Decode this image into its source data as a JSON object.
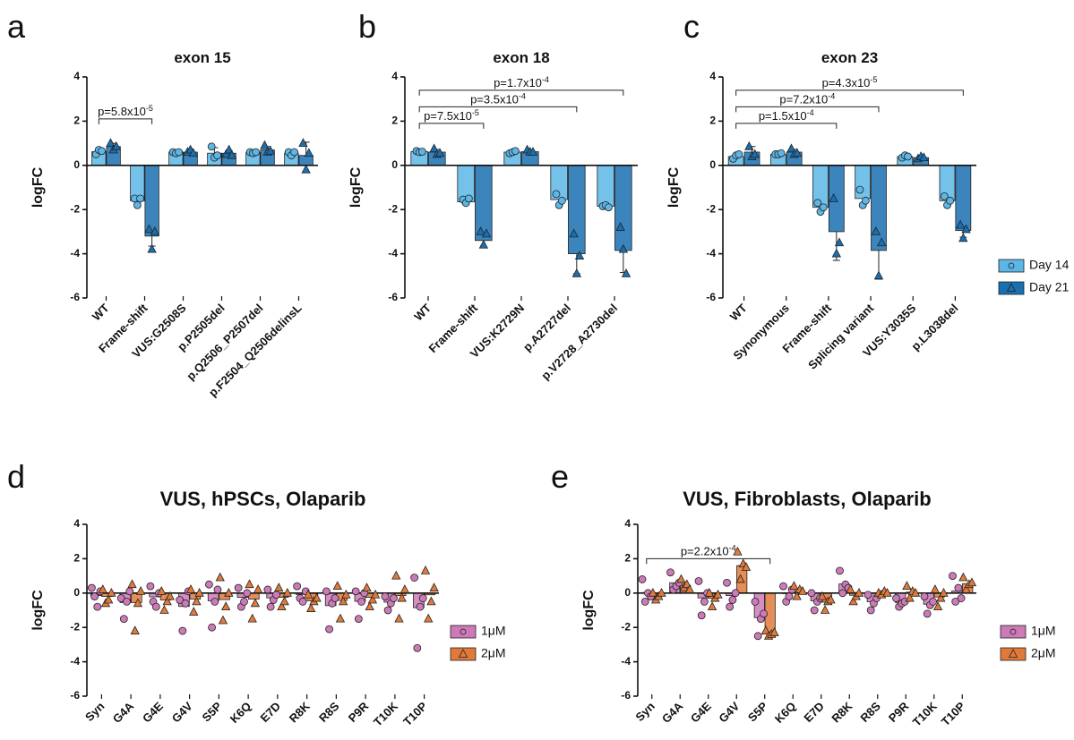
{
  "chart_data": [
    {
      "type": "bar",
      "panel": "a",
      "title": "exon 15",
      "y_label": "logFC",
      "categories": [
        "WT",
        "Frame-shift",
        "VUS:G2508S",
        "p.P2505del",
        "p.Q2506_P2507del",
        "p.F2504_Q2506delinsL"
      ],
      "ylim": [
        -6,
        4
      ],
      "yticks": [
        -6,
        -4,
        -2,
        0,
        2,
        4
      ],
      "series": [
        {
          "name": "Day 14",
          "color": "#5cb6e6",
          "marker": "circle",
          "values": [
            0.62,
            -1.6,
            0.6,
            0.55,
            0.58,
            0.55
          ],
          "errors": [
            0.1,
            0.15,
            0.03,
            0.25,
            0.03,
            0.08
          ],
          "points": [
            [
              0.5,
              0.7,
              0.65
            ],
            [
              -1.5,
              -1.8,
              -1.5
            ],
            [
              0.6,
              0.55,
              0.6
            ],
            [
              0.85,
              0.35,
              0.45
            ],
            [
              0.6,
              0.55,
              0.6
            ],
            [
              0.6,
              0.45,
              0.6
            ]
          ]
        },
        {
          "name": "Day 21",
          "color": "#1a6fb0",
          "marker": "triangle",
          "values": [
            0.85,
            -3.2,
            0.6,
            0.55,
            0.7,
            0.45
          ],
          "errors": [
            0.15,
            0.45,
            0.08,
            0.12,
            0.15,
            0.6
          ],
          "points": [
            [
              1.0,
              0.7,
              0.85
            ],
            [
              -2.9,
              -3.8,
              -3.0
            ],
            [
              0.6,
              0.7,
              0.55
            ],
            [
              0.5,
              0.7,
              0.45
            ],
            [
              0.9,
              0.6,
              0.65
            ],
            [
              1.0,
              -0.2,
              0.55
            ]
          ]
        }
      ],
      "annotations": [
        {
          "text": "p=5.8x10",
          "exp": "-5",
          "span": [
            0,
            1
          ]
        }
      ]
    },
    {
      "type": "bar",
      "panel": "b",
      "title": "exon 18",
      "y_label": "logFC",
      "categories": [
        "WT",
        "Frame-shift",
        "VUS:K2729N",
        "p.A2727del",
        "p.V2728_A2730del"
      ],
      "ylim": [
        -6,
        4
      ],
      "yticks": [
        -6,
        -4,
        -2,
        0,
        2,
        4
      ],
      "series": [
        {
          "name": "Day 14",
          "color": "#5cb6e6",
          "marker": "circle",
          "values": [
            0.62,
            -1.65,
            0.6,
            -1.55,
            -1.85
          ],
          "errors": [
            0.03,
            0.12,
            0.05,
            0.25,
            0.05
          ],
          "points": [
            [
              0.65,
              0.6,
              0.62
            ],
            [
              -1.55,
              -1.7,
              -1.5
            ],
            [
              0.55,
              0.6,
              0.65
            ],
            [
              -1.3,
              -1.8,
              -1.6
            ],
            [
              -1.85,
              -1.8,
              -1.9
            ]
          ]
        },
        {
          "name": "Day 21",
          "color": "#1a6fb0",
          "marker": "triangle",
          "values": [
            0.6,
            -3.4,
            0.62,
            -4.0,
            -3.85
          ],
          "errors": [
            0.12,
            0.3,
            0.05,
            0.9,
            1.0
          ],
          "points": [
            [
              0.75,
              0.5,
              0.55
            ],
            [
              -3.0,
              -3.6,
              -3.1
            ],
            [
              0.7,
              0.6,
              0.6
            ],
            [
              -3.1,
              -4.9,
              -4.1
            ],
            [
              -2.8,
              -3.8,
              -4.9
            ]
          ]
        }
      ],
      "annotations": [
        {
          "text": "p=7.5x10",
          "exp": "-5",
          "span": [
            0,
            1
          ]
        },
        {
          "text": "p=3.5x10",
          "exp": "-4",
          "span": [
            0,
            3
          ]
        },
        {
          "text": "p=1.7x10",
          "exp": "-4",
          "span": [
            0,
            4
          ]
        }
      ]
    },
    {
      "type": "bar",
      "panel": "c",
      "title": "exon 23",
      "y_label": "logFC",
      "legend": "right",
      "categories": [
        "WT",
        "Synonymous",
        "Frame-shift",
        "Splicing variant",
        "VUS:Y3035S",
        "p.L3038del"
      ],
      "ylim": [
        -6,
        4
      ],
      "yticks": [
        -6,
        -4,
        -2,
        0,
        2,
        4
      ],
      "series": [
        {
          "name": "Day 14",
          "color": "#5cb6e6",
          "marker": "circle",
          "values": [
            0.4,
            0.5,
            -1.9,
            -1.5,
            0.4,
            -1.6
          ],
          "errors": [
            0.1,
            0.04,
            0.2,
            0.35,
            0.05,
            0.2
          ],
          "points": [
            [
              0.3,
              0.45,
              0.5
            ],
            [
              0.5,
              0.5,
              0.55
            ],
            [
              -1.7,
              -2.1,
              -1.9
            ],
            [
              -1.1,
              -1.8,
              -1.6
            ],
            [
              0.35,
              0.45,
              0.4
            ],
            [
              -1.4,
              -1.8,
              -1.6
            ]
          ]
        },
        {
          "name": "Day 21",
          "color": "#1a6fb0",
          "marker": "triangle",
          "values": [
            0.6,
            0.6,
            -3.0,
            -3.85,
            0.35,
            -2.95
          ],
          "errors": [
            0.25,
            0.12,
            1.3,
            1.3,
            0.05,
            0.3
          ],
          "points": [
            [
              0.85,
              0.4,
              0.5
            ],
            [
              0.75,
              0.5,
              0.55
            ],
            [
              -1.5,
              -4.0,
              -3.5
            ],
            [
              -3.0,
              -5.0,
              -3.5
            ],
            [
              0.3,
              0.4,
              0.35
            ],
            [
              -2.7,
              -3.3,
              -2.9
            ]
          ]
        }
      ],
      "annotations": [
        {
          "text": "p=1.5x10",
          "exp": "-4",
          "span": [
            0,
            2
          ]
        },
        {
          "text": "p=7.2x10",
          "exp": "-4",
          "span": [
            0,
            3
          ]
        },
        {
          "text": "p=4.3x10",
          "exp": "-5",
          "span": [
            0,
            5
          ]
        }
      ]
    },
    {
      "type": "bar",
      "panel": "d",
      "title": "VUS, hPSCs, Olaparib",
      "y_label": "logFC",
      "legend": "right",
      "categories": [
        "Syn",
        "G4A",
        "G4E",
        "G4V",
        "S5P",
        "K6Q",
        "E7D",
        "R8K",
        "R8S",
        "P9R",
        "T10K",
        "T10P"
      ],
      "ylim": [
        -6,
        4
      ],
      "yticks": [
        -6,
        -4,
        -2,
        0,
        2,
        4
      ],
      "series": [
        {
          "name": "1μM",
          "color": "#cc7ab8",
          "marker": "circle",
          "values": [
            -0.15,
            -0.55,
            -0.22,
            -0.78,
            -0.45,
            -0.25,
            -0.28,
            -0.08,
            -0.73,
            -0.48,
            -0.53,
            -0.85
          ],
          "points": [
            [
              0.3,
              -0.2,
              -0.8,
              0.1
            ],
            [
              -0.3,
              -1.5,
              -0.5,
              0.1
            ],
            [
              0.4,
              -0.5,
              -0.8,
              0
            ],
            [
              -0.4,
              -2.2,
              -0.6,
              0.1
            ],
            [
              0.5,
              -2.0,
              -0.5,
              0.2
            ],
            [
              0.3,
              -0.8,
              -0.5,
              0
            ],
            [
              0.2,
              -0.8,
              -0.4,
              -0.1
            ],
            [
              0.4,
              -0.3,
              -0.5,
              0.1
            ],
            [
              0.1,
              -2.1,
              -0.6,
              -0.3
            ],
            [
              0.1,
              -1.5,
              -0.5,
              0
            ],
            [
              -0.2,
              -1.0,
              -0.6,
              -0.3
            ],
            [
              0.9,
              -3.2,
              -0.8,
              -0.3
            ]
          ]
        },
        {
          "name": "2μM",
          "color": "#e07a3a",
          "marker": "triangle",
          "values": [
            -0.2,
            -0.55,
            -0.4,
            -0.35,
            -0.38,
            -0.35,
            -0.25,
            -0.45,
            -0.43,
            -0.25,
            -0.15,
            -0.1
          ],
          "points": [
            [
              0.2,
              -0.6,
              -0.4,
              0
            ],
            [
              0.5,
              -2.2,
              -0.6,
              0.1
            ],
            [
              0.1,
              -1.0,
              -0.5,
              -0.2
            ],
            [
              0.2,
              -1.1,
              -0.5,
              0
            ],
            [
              0.9,
              -1.6,
              -0.8,
              0
            ],
            [
              0.5,
              -1.5,
              -0.6,
              0.2
            ],
            [
              0.3,
              -0.8,
              -0.5,
              0
            ],
            [
              -0.1,
              -0.9,
              -0.5,
              -0.3
            ],
            [
              0.4,
              -1.5,
              -0.5,
              -0.1
            ],
            [
              0.3,
              -0.8,
              -0.4,
              -0.1
            ],
            [
              1.0,
              -1.5,
              -0.3,
              0.2
            ],
            [
              1.3,
              -1.5,
              -0.5,
              0.3
            ]
          ]
        }
      ]
    },
    {
      "type": "bar",
      "panel": "e",
      "title": "VUS, Fibroblasts, Olaparib",
      "y_label": "logFC",
      "legend": "right",
      "categories": [
        "Syn",
        "G4A",
        "G4E",
        "G4V",
        "S5P",
        "K6Q",
        "E7D",
        "R8K",
        "R8S",
        "P9R",
        "T10K",
        "T10P"
      ],
      "ylim": [
        -6,
        4
      ],
      "yticks": [
        -6,
        -4,
        -2,
        0,
        2,
        4
      ],
      "series": [
        {
          "name": "1μM",
          "color": "#cc7ab8",
          "marker": "circle",
          "values": [
            0.03,
            0.6,
            -0.28,
            -0.15,
            -1.43,
            -0.03,
            -0.45,
            0.53,
            -0.5,
            -0.55,
            -0.65,
            0.13
          ],
          "points": [
            [
              0.8,
              -0.5,
              0,
              -0.2
            ],
            [
              1.2,
              0.2,
              0.4,
              0.6
            ],
            [
              0.7,
              -1.3,
              -0.5,
              0
            ],
            [
              0.6,
              -0.8,
              -0.4,
              0
            ],
            [
              -0.5,
              -2.5,
              -1.5,
              -1.2
            ],
            [
              0.4,
              -0.5,
              -0.2,
              0.2
            ],
            [
              0,
              -1.0,
              -0.5,
              -0.3
            ],
            [
              1.3,
              0,
              0.5,
              0.3
            ],
            [
              -0.1,
              -1.0,
              -0.6,
              -0.3
            ],
            [
              -0.3,
              -0.8,
              -0.6,
              -0.5
            ],
            [
              -0.2,
              -1.2,
              -0.7,
              -0.5
            ],
            [
              1.0,
              -0.5,
              0.3,
              -0.3
            ]
          ]
        },
        {
          "name": "2μM",
          "color": "#e07a3a",
          "marker": "triangle",
          "values": [
            -0.15,
            0.45,
            -0.3,
            1.6,
            -2.35,
            0.13,
            -0.53,
            -0.13,
            0,
            0.05,
            -0.23,
            0.55
          ],
          "points": [
            [
              0,
              -0.4,
              -0.2,
              0
            ],
            [
              0.8,
              0.3,
              0.5,
              0.2
            ],
            [
              0,
              -0.8,
              -0.3,
              -0.1
            ],
            [
              2.4,
              0.8,
              1.7,
              1.5
            ],
            [
              -2.2,
              -2.5,
              -2.4,
              -2.3
            ],
            [
              0.4,
              -0.2,
              0.2,
              0.1
            ],
            [
              -0.2,
              -1.0,
              -0.5,
              -0.4
            ],
            [
              0.2,
              -0.5,
              -0.2,
              0
            ],
            [
              0,
              -0.1,
              0.1,
              0
            ],
            [
              0.4,
              -0.3,
              0.1,
              0
            ],
            [
              0.2,
              -0.8,
              -0.3,
              0
            ],
            [
              0.9,
              0.2,
              0.5,
              0.6
            ]
          ]
        }
      ],
      "annotations": [
        {
          "text": "p=2.2x10",
          "exp": "-4",
          "span": [
            0,
            4
          ]
        }
      ]
    }
  ]
}
